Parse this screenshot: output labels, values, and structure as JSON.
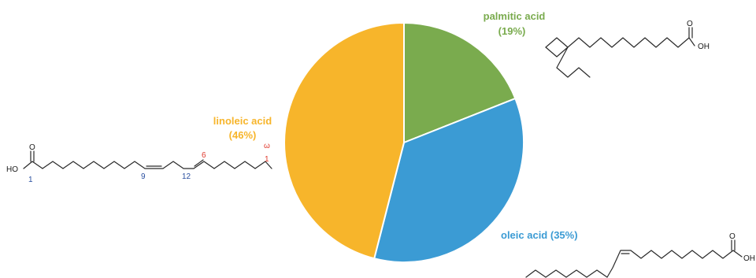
{
  "chart_data": {
    "type": "pie",
    "slices": [
      {
        "label": "palmitic acid",
        "pct_label": "(19%)",
        "value": 19,
        "color": "#7aab4e"
      },
      {
        "label": "oleic acid",
        "pct_label": "(35%)",
        "value": 35,
        "color": "#3b9bd4"
      },
      {
        "label": "linoleic acid",
        "pct_label": "(46%)",
        "value": 46,
        "color": "#f7b52b"
      }
    ],
    "start_angle_deg": 0,
    "direction": "clockwise"
  },
  "structures": {
    "atom_o": "O",
    "atom_oh": "OH",
    "atom_ho": "HO",
    "linoleic_numbers": {
      "c1": "1",
      "c9": "9",
      "c12": "12",
      "w6": "6",
      "omega": "ω",
      "w1": "1"
    }
  }
}
